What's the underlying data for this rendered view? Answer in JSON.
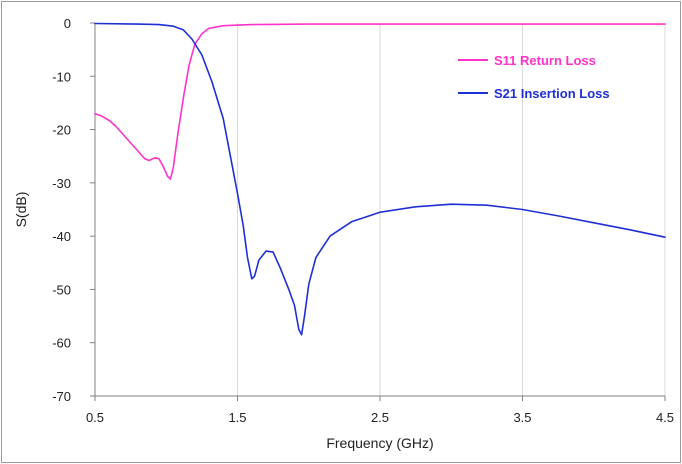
{
  "chart_data": {
    "type": "line",
    "title": "",
    "xlabel": "Frequency (GHz)",
    "ylabel": "S(dB)",
    "xlim": [
      0.5,
      4.5
    ],
    "ylim": [
      -70,
      0
    ],
    "x_ticks": [
      0.5,
      1.5,
      2.5,
      3.5,
      4.5
    ],
    "x_tick_labels": [
      "0.5",
      "1.5",
      "2.5",
      "3.5",
      "4.5"
    ],
    "y_ticks": [
      0,
      -10,
      -20,
      -30,
      -40,
      -50,
      -60,
      -70
    ],
    "y_tick_labels": [
      "0",
      "-10",
      "-20",
      "-30",
      "-40",
      "-50",
      "-60",
      "-70"
    ],
    "grid": {
      "vertical": true,
      "horizontal": false
    },
    "legend_placement": "top-right",
    "series": [
      {
        "name": "S11 Return Loss",
        "color": "#ff33cc",
        "points": [
          [
            0.5,
            -17
          ],
          [
            0.55,
            -17.5
          ],
          [
            0.6,
            -18.3
          ],
          [
            0.65,
            -19.5
          ],
          [
            0.7,
            -21
          ],
          [
            0.75,
            -22.5
          ],
          [
            0.8,
            -24
          ],
          [
            0.85,
            -25.5
          ],
          [
            0.88,
            -25.8
          ],
          [
            0.92,
            -25.3
          ],
          [
            0.95,
            -25.5
          ],
          [
            0.98,
            -27
          ],
          [
            1.01,
            -28.8
          ],
          [
            1.03,
            -29.3
          ],
          [
            1.05,
            -27
          ],
          [
            1.08,
            -21
          ],
          [
            1.12,
            -14
          ],
          [
            1.16,
            -8
          ],
          [
            1.2,
            -4
          ],
          [
            1.25,
            -2
          ],
          [
            1.3,
            -1
          ],
          [
            1.4,
            -0.5
          ],
          [
            1.6,
            -0.3
          ],
          [
            2.0,
            -0.2
          ],
          [
            2.5,
            -0.2
          ],
          [
            2.95,
            -0.2
          ],
          [
            3.5,
            -0.2
          ],
          [
            4.0,
            -0.2
          ],
          [
            4.5,
            -0.2
          ]
        ]
      },
      {
        "name": "S21 Insertion Loss",
        "color": "#1f2fd6",
        "points": [
          [
            0.5,
            -0.1
          ],
          [
            0.8,
            -0.2
          ],
          [
            0.95,
            -0.3
          ],
          [
            1.05,
            -0.6
          ],
          [
            1.12,
            -1.3
          ],
          [
            1.18,
            -3
          ],
          [
            1.25,
            -6
          ],
          [
            1.32,
            -11
          ],
          [
            1.4,
            -18
          ],
          [
            1.45,
            -25
          ],
          [
            1.5,
            -32
          ],
          [
            1.54,
            -38
          ],
          [
            1.57,
            -44
          ],
          [
            1.6,
            -48
          ],
          [
            1.62,
            -47.5
          ],
          [
            1.65,
            -44.5
          ],
          [
            1.7,
            -42.8
          ],
          [
            1.75,
            -43
          ],
          [
            1.8,
            -46
          ],
          [
            1.86,
            -50
          ],
          [
            1.9,
            -53
          ],
          [
            1.93,
            -57.5
          ],
          [
            1.95,
            -58.5
          ],
          [
            1.97,
            -55
          ],
          [
            2.0,
            -49
          ],
          [
            2.05,
            -44
          ],
          [
            2.15,
            -40
          ],
          [
            2.3,
            -37.3
          ],
          [
            2.5,
            -35.5
          ],
          [
            2.75,
            -34.5
          ],
          [
            3.0,
            -34
          ],
          [
            3.25,
            -34.2
          ],
          [
            3.5,
            -35
          ],
          [
            3.75,
            -36.2
          ],
          [
            4.0,
            -37.5
          ],
          [
            4.25,
            -38.8
          ],
          [
            4.5,
            -40.2
          ]
        ]
      }
    ]
  }
}
